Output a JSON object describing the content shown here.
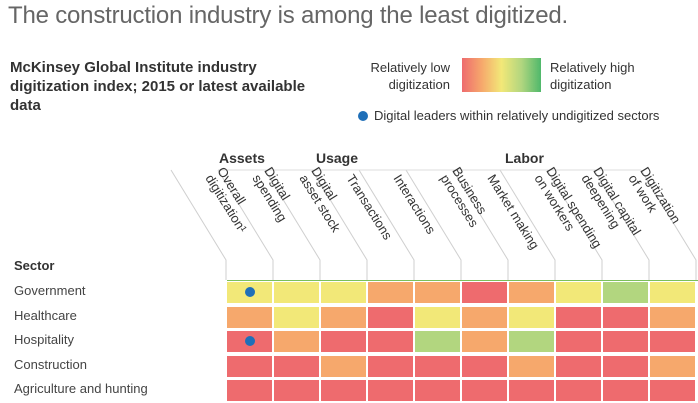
{
  "title": "The construction industry is among the least digitized.",
  "subtitle": "McKinsey Global Institute industry digitization index; 2015 or latest available data",
  "legend": {
    "low_label": "Relatively low digitization",
    "high_label": "Relatively high digitization",
    "dot_label": "Digital leaders within relatively undigitized sectors",
    "colors": {
      "low": "#ee6b6e",
      "mid_low": "#f6a86c",
      "mid": "#f2e878",
      "mid_high": "#b2d67f",
      "high": "#4fb86b"
    },
    "dot_color": "#1f6fb8"
  },
  "chart_data": {
    "type": "heatmap",
    "title": "McKinsey Global Institute industry digitization index; 2015 or latest available data",
    "row_header": "Sector",
    "groups": [
      {
        "label": "Assets",
        "columns": [
          "Digital spending",
          "Digital asset stock"
        ]
      },
      {
        "label": "Usage",
        "columns": [
          "Transactions",
          "Interactions",
          "Business processes",
          "Market making"
        ]
      },
      {
        "label": "Labor",
        "columns": [
          "Digital spending on workers",
          "Digital capital deepening",
          "Digitization of work"
        ]
      }
    ],
    "columns": [
      "Overall digitization¹",
      "Digital spending",
      "Digital asset stock",
      "Transactions",
      "Interactions",
      "Business processes",
      "Market making",
      "Digital spending on workers",
      "Digital capital deepening",
      "Digitization of work"
    ],
    "scale": [
      "low",
      "mid_low",
      "mid",
      "mid_high",
      "high"
    ],
    "rows": [
      {
        "sector": "Government",
        "values": [
          "mid",
          "mid",
          "mid",
          "mid_low",
          "mid_low",
          "low",
          "mid_low",
          "mid",
          "mid_high",
          "mid"
        ],
        "leader_dot_columns": [
          0
        ]
      },
      {
        "sector": "Healthcare",
        "values": [
          "mid_low",
          "mid",
          "mid_low",
          "low",
          "mid",
          "mid_low",
          "mid",
          "low",
          "low",
          "mid_low"
        ],
        "leader_dot_columns": []
      },
      {
        "sector": "Hospitality",
        "values": [
          "low",
          "mid_low",
          "low",
          "low",
          "mid_high",
          "mid_low",
          "mid_high",
          "low",
          "low",
          "low"
        ],
        "leader_dot_columns": [
          0
        ]
      },
      {
        "sector": "Construction",
        "values": [
          "low",
          "low",
          "mid_low",
          "low",
          "low",
          "low",
          "mid_low",
          "low",
          "low",
          "mid_low"
        ],
        "leader_dot_columns": []
      },
      {
        "sector": "Agriculture and hunting",
        "values": [
          "low",
          "low",
          "low",
          "low",
          "low",
          "low",
          "low",
          "low",
          "low",
          "low"
        ],
        "leader_dot_columns": []
      }
    ]
  }
}
